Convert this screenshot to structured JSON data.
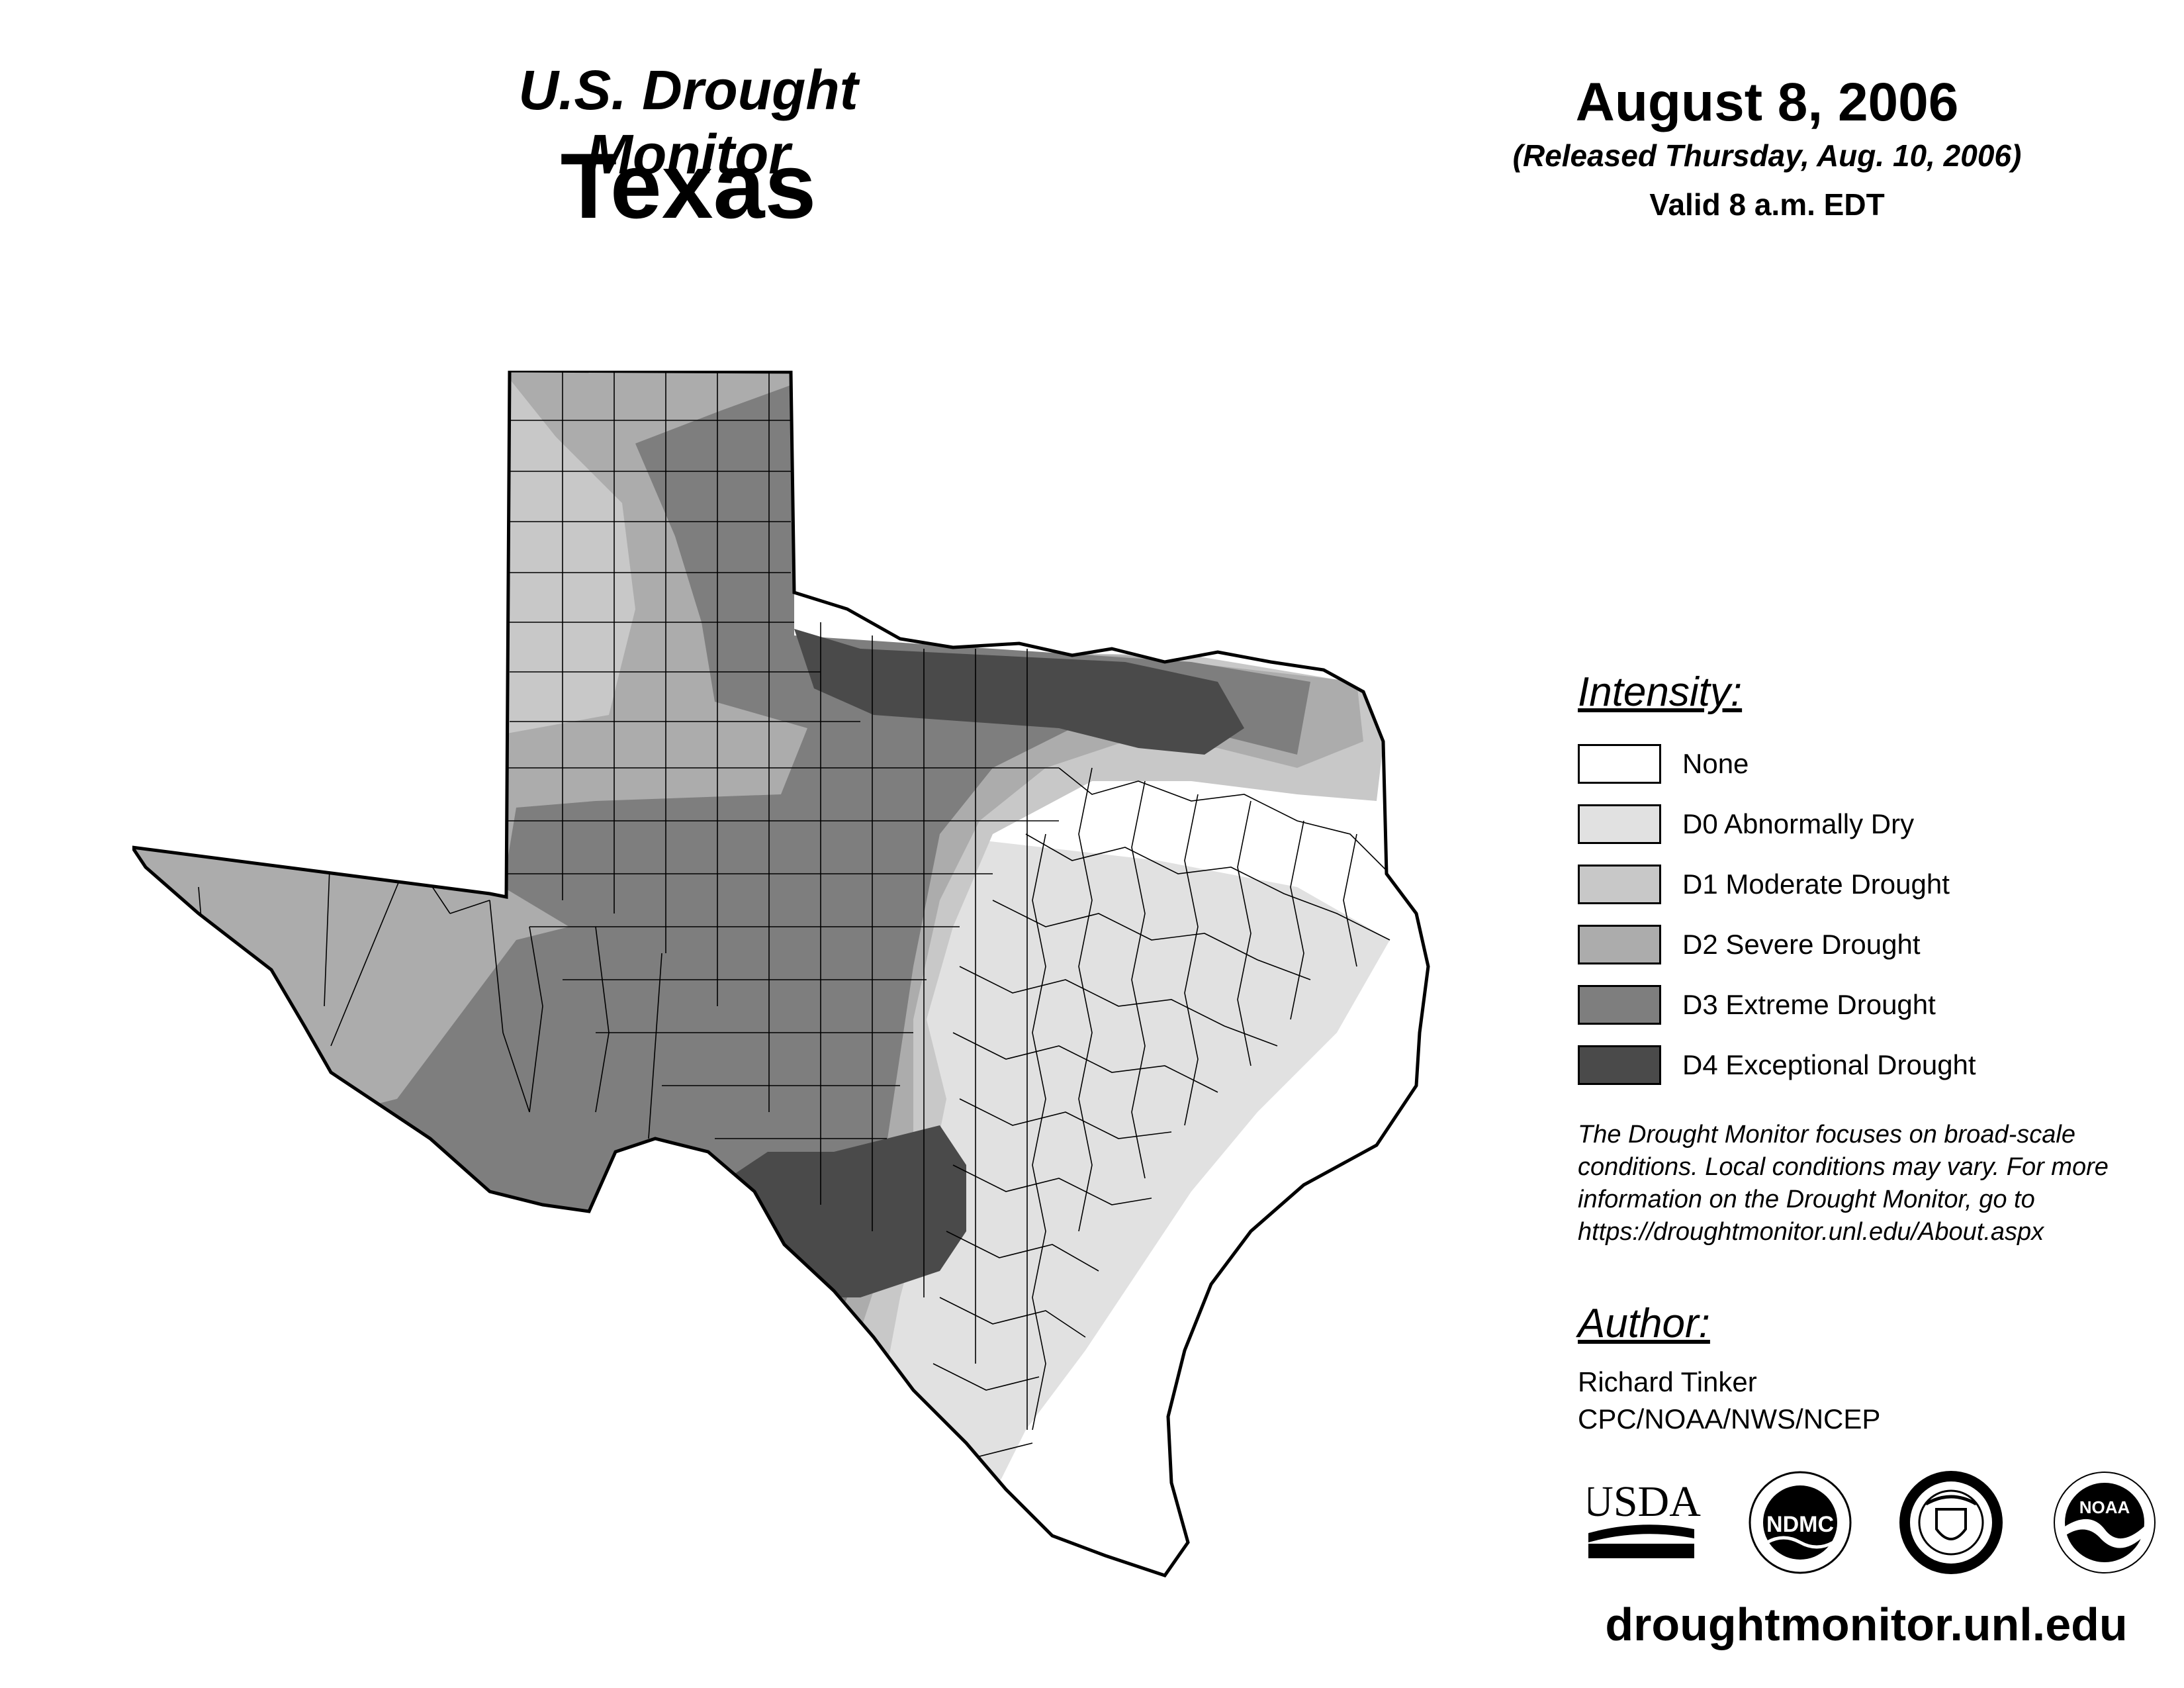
{
  "header": {
    "subtitle": "U.S. Drought Monitor",
    "state": "Texas",
    "date": "August 8, 2006",
    "released": "(Released Thursday, Aug. 10, 2006)",
    "valid": "Valid 8 a.m. EDT"
  },
  "legend": {
    "heading": "Intensity:",
    "items": [
      {
        "label": "None",
        "color": "#ffffff"
      },
      {
        "label": "D0 Abnormally Dry",
        "color": "#e1e1e1"
      },
      {
        "label": "D1 Moderate Drought",
        "color": "#c8c8c8"
      },
      {
        "label": "D2 Severe Drought",
        "color": "#acacac"
      },
      {
        "label": "D3 Extreme Drought",
        "color": "#7e7e7e"
      },
      {
        "label": "D4 Exceptional Drought",
        "color": "#4a4a4a"
      }
    ]
  },
  "note": "The Drought Monitor focuses on broad-scale conditions. Local conditions may vary. For more information on the Drought Monitor, go to https://droughtmonitor.unl.edu/About.aspx",
  "author": {
    "heading": "Author:",
    "name": "Richard Tinker",
    "org": "CPC/NOAA/NWS/NCEP"
  },
  "logos": {
    "usda": "USDA",
    "ndmc": "NDMC",
    "noaa": "NOAA"
  },
  "footer": {
    "url": "droughtmonitor.unl.edu"
  }
}
